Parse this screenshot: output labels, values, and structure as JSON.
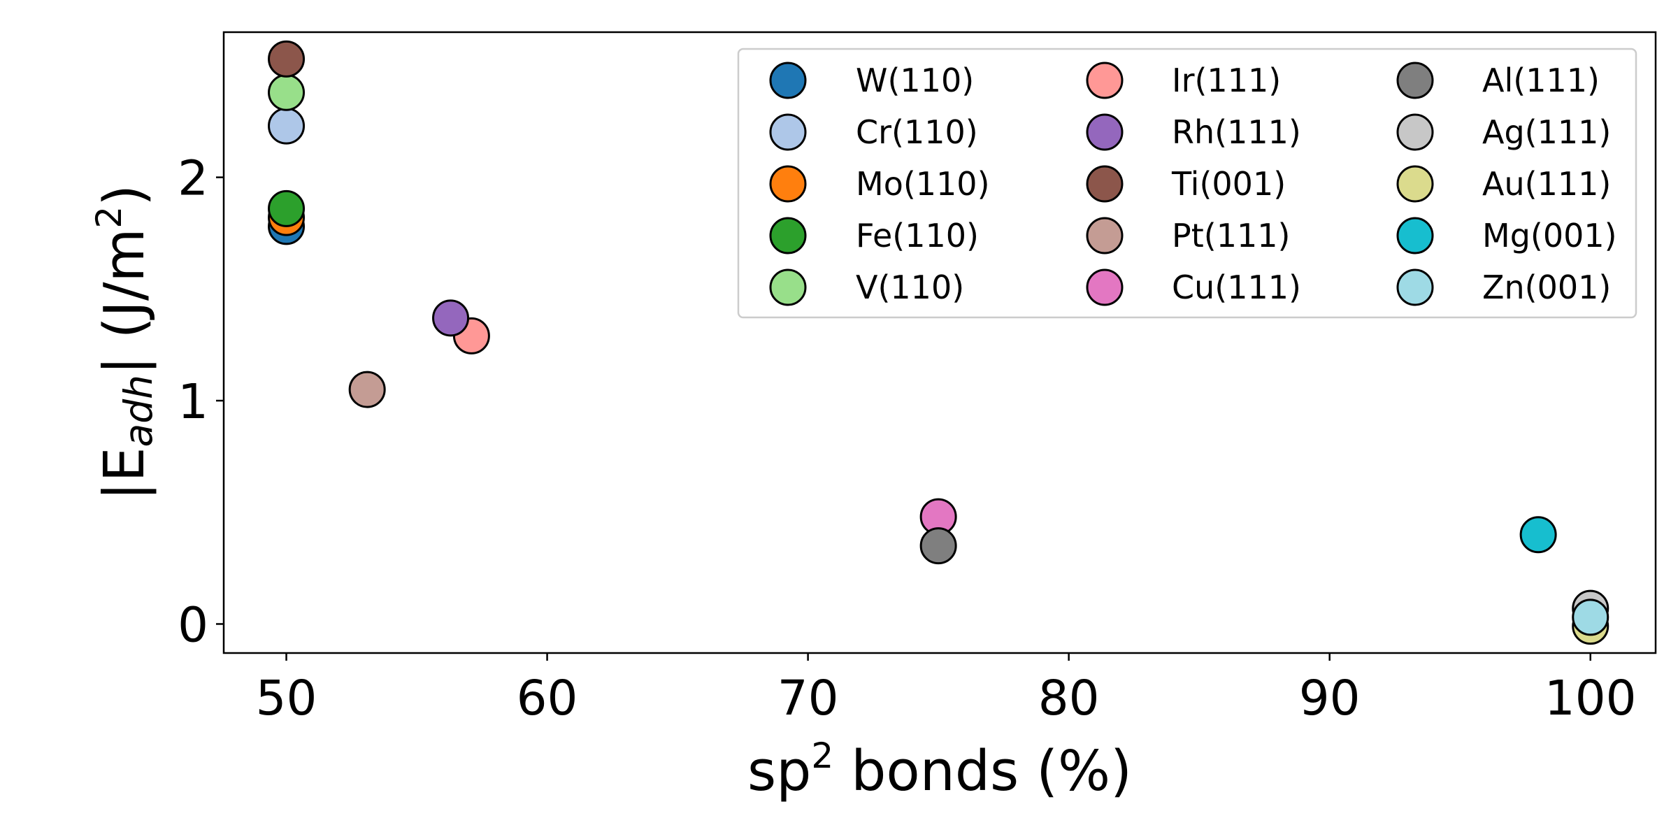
{
  "chart_data": {
    "type": "scatter",
    "title": "",
    "xlabel": {
      "prefix": "sp",
      "sup": "2",
      "suffix": " bonds (%)"
    },
    "ylabel": {
      "prefix": "|E",
      "sub": "adh",
      "middle": "| (J/m",
      "sup": "2",
      "suffix": ")"
    },
    "xlim": [
      47.6,
      102.5
    ],
    "ylim": [
      -0.13,
      2.65
    ],
    "xticks": [
      50,
      60,
      70,
      80,
      90,
      100
    ],
    "yticks": [
      0,
      1,
      2
    ],
    "grid": false,
    "legend_position": "top-right",
    "legend_columns": 3,
    "series": [
      {
        "name": "W(110)",
        "color": "#1f77b4",
        "x": 50.0,
        "y": 1.78
      },
      {
        "name": "Cr(110)",
        "color": "#aec7e8",
        "x": 50.0,
        "y": 2.23
      },
      {
        "name": "Mo(110)",
        "color": "#ff7f0e",
        "x": 50.0,
        "y": 1.82
      },
      {
        "name": "Fe(110)",
        "color": "#2ca02c",
        "x": 50.0,
        "y": 1.86
      },
      {
        "name": "V(110)",
        "color": "#98df8a",
        "x": 50.0,
        "y": 2.38
      },
      {
        "name": "Ir(111)",
        "color": "#ff9896",
        "x": 57.1,
        "y": 1.29
      },
      {
        "name": "Rh(111)",
        "color": "#9467bd",
        "x": 56.3,
        "y": 1.37
      },
      {
        "name": "Ti(001)",
        "color": "#8c564b",
        "x": 50.0,
        "y": 2.53
      },
      {
        "name": "Pt(111)",
        "color": "#c49c94",
        "x": 53.1,
        "y": 1.05
      },
      {
        "name": "Cu(111)",
        "color": "#e377c2",
        "x": 75.0,
        "y": 0.48
      },
      {
        "name": "Al(111)",
        "color": "#7f7f7f",
        "x": 75.0,
        "y": 0.35
      },
      {
        "name": "Ag(111)",
        "color": "#c7c7c7",
        "x": 100.0,
        "y": 0.07
      },
      {
        "name": "Au(111)",
        "color": "#dbdb8d",
        "x": 100.0,
        "y": -0.01
      },
      {
        "name": "Mg(001)",
        "color": "#17becf",
        "x": 98.0,
        "y": 0.4
      },
      {
        "name": "Zn(001)",
        "color": "#9edae5",
        "x": 100.0,
        "y": 0.03
      }
    ]
  }
}
